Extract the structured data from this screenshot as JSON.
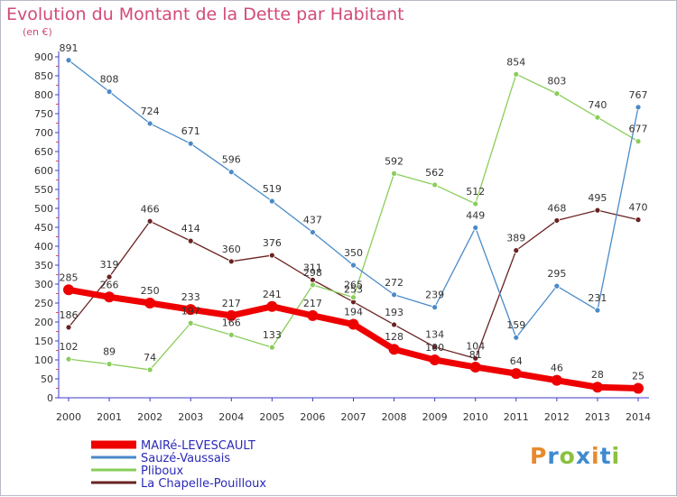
{
  "chart_data": {
    "type": "line",
    "title": "Evolution du Montant de la Dette par Habitant",
    "unit": "(en €)",
    "x": [
      "2000",
      "2001",
      "2002",
      "2003",
      "2004",
      "2005",
      "2006",
      "2007",
      "2008",
      "2009",
      "2010",
      "2011",
      "2012",
      "2013",
      "2014"
    ],
    "ylim": [
      0,
      900
    ],
    "yticks": [
      0,
      50,
      100,
      150,
      200,
      250,
      300,
      350,
      400,
      450,
      500,
      550,
      600,
      650,
      700,
      750,
      800,
      850,
      900
    ],
    "grid": false,
    "legend_position": "bottom-left",
    "series": [
      {
        "name": "MAIRé-LEVESCAULT",
        "color": "#ee0000",
        "values": [
          285,
          266,
          250,
          233,
          217,
          241,
          217,
          194,
          128,
          100,
          81,
          64,
          46,
          28,
          25
        ]
      },
      {
        "name": "Sauzé-Vaussais",
        "color": "#4a8ac8",
        "values": [
          891,
          808,
          724,
          671,
          596,
          519,
          437,
          350,
          272,
          239,
          449,
          159,
          295,
          231,
          767
        ]
      },
      {
        "name": "Pliboux",
        "color": "#8acd5a",
        "values": [
          102,
          89,
          74,
          197,
          166,
          133,
          298,
          265,
          592,
          562,
          512,
          854,
          803,
          740,
          677
        ]
      },
      {
        "name": "La Chapelle-Pouilloux",
        "color": "#6a2222",
        "values": [
          186,
          319,
          466,
          414,
          360,
          376,
          311,
          253,
          193,
          134,
          104,
          389,
          468,
          495,
          470
        ]
      }
    ]
  },
  "logo": {
    "text": "Proxiti",
    "letter_colors": [
      "#e88a2c",
      "#3f8acf",
      "#8ac13e",
      "#3f8acf",
      "#e88a2c",
      "#3f8acf",
      "#8ac13e"
    ]
  }
}
